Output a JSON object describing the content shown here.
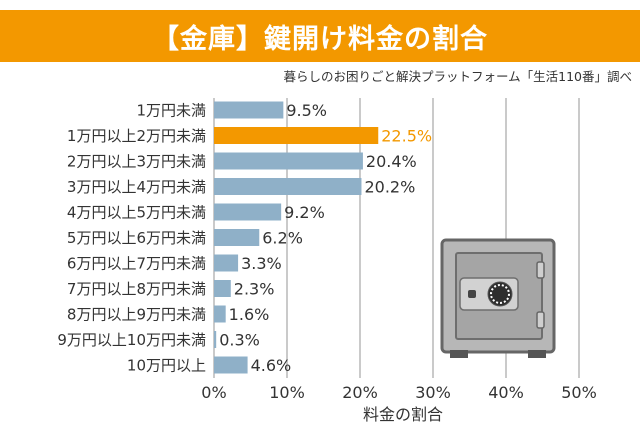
{
  "title": "【金庫】鍵開け料金の割合",
  "source": "暮らしのお困りごと解決プラットフォーム「生活110番」調べ",
  "colors": {
    "banner": "#f39800",
    "bar": "#8fb0c8",
    "highlight": "#f39800",
    "grid": "#b9b9b9",
    "text": "#333333"
  },
  "icon": "safe-icon",
  "chart_data": {
    "type": "bar",
    "orientation": "horizontal",
    "categories": [
      "1万円未満",
      "1万円以上2万円未満",
      "2万円以上3万円未満",
      "3万円以上4万円未満",
      "4万円以上5万円未満",
      "5万円以上6万円未満",
      "6万円以上7万円未満",
      "7万円以上8万円未満",
      "8万円以上9万円未満",
      "9万円以上10万円未満",
      "10万円以上"
    ],
    "values": [
      9.5,
      22.5,
      20.4,
      20.2,
      9.2,
      6.2,
      3.3,
      2.3,
      1.6,
      0.3,
      4.6
    ],
    "value_labels": [
      "9.5%",
      "22.5%",
      "20.4%",
      "20.2%",
      "9.2%",
      "6.2%",
      "3.3%",
      "2.3%",
      "1.6%",
      "0.3%",
      "4.6%"
    ],
    "highlight_index": 1,
    "xlabel": "料金の割合",
    "xlim": [
      0,
      50
    ],
    "x_ticks": [
      "0%",
      "10%",
      "20%",
      "30%",
      "40%",
      "50%"
    ],
    "grid": true
  }
}
